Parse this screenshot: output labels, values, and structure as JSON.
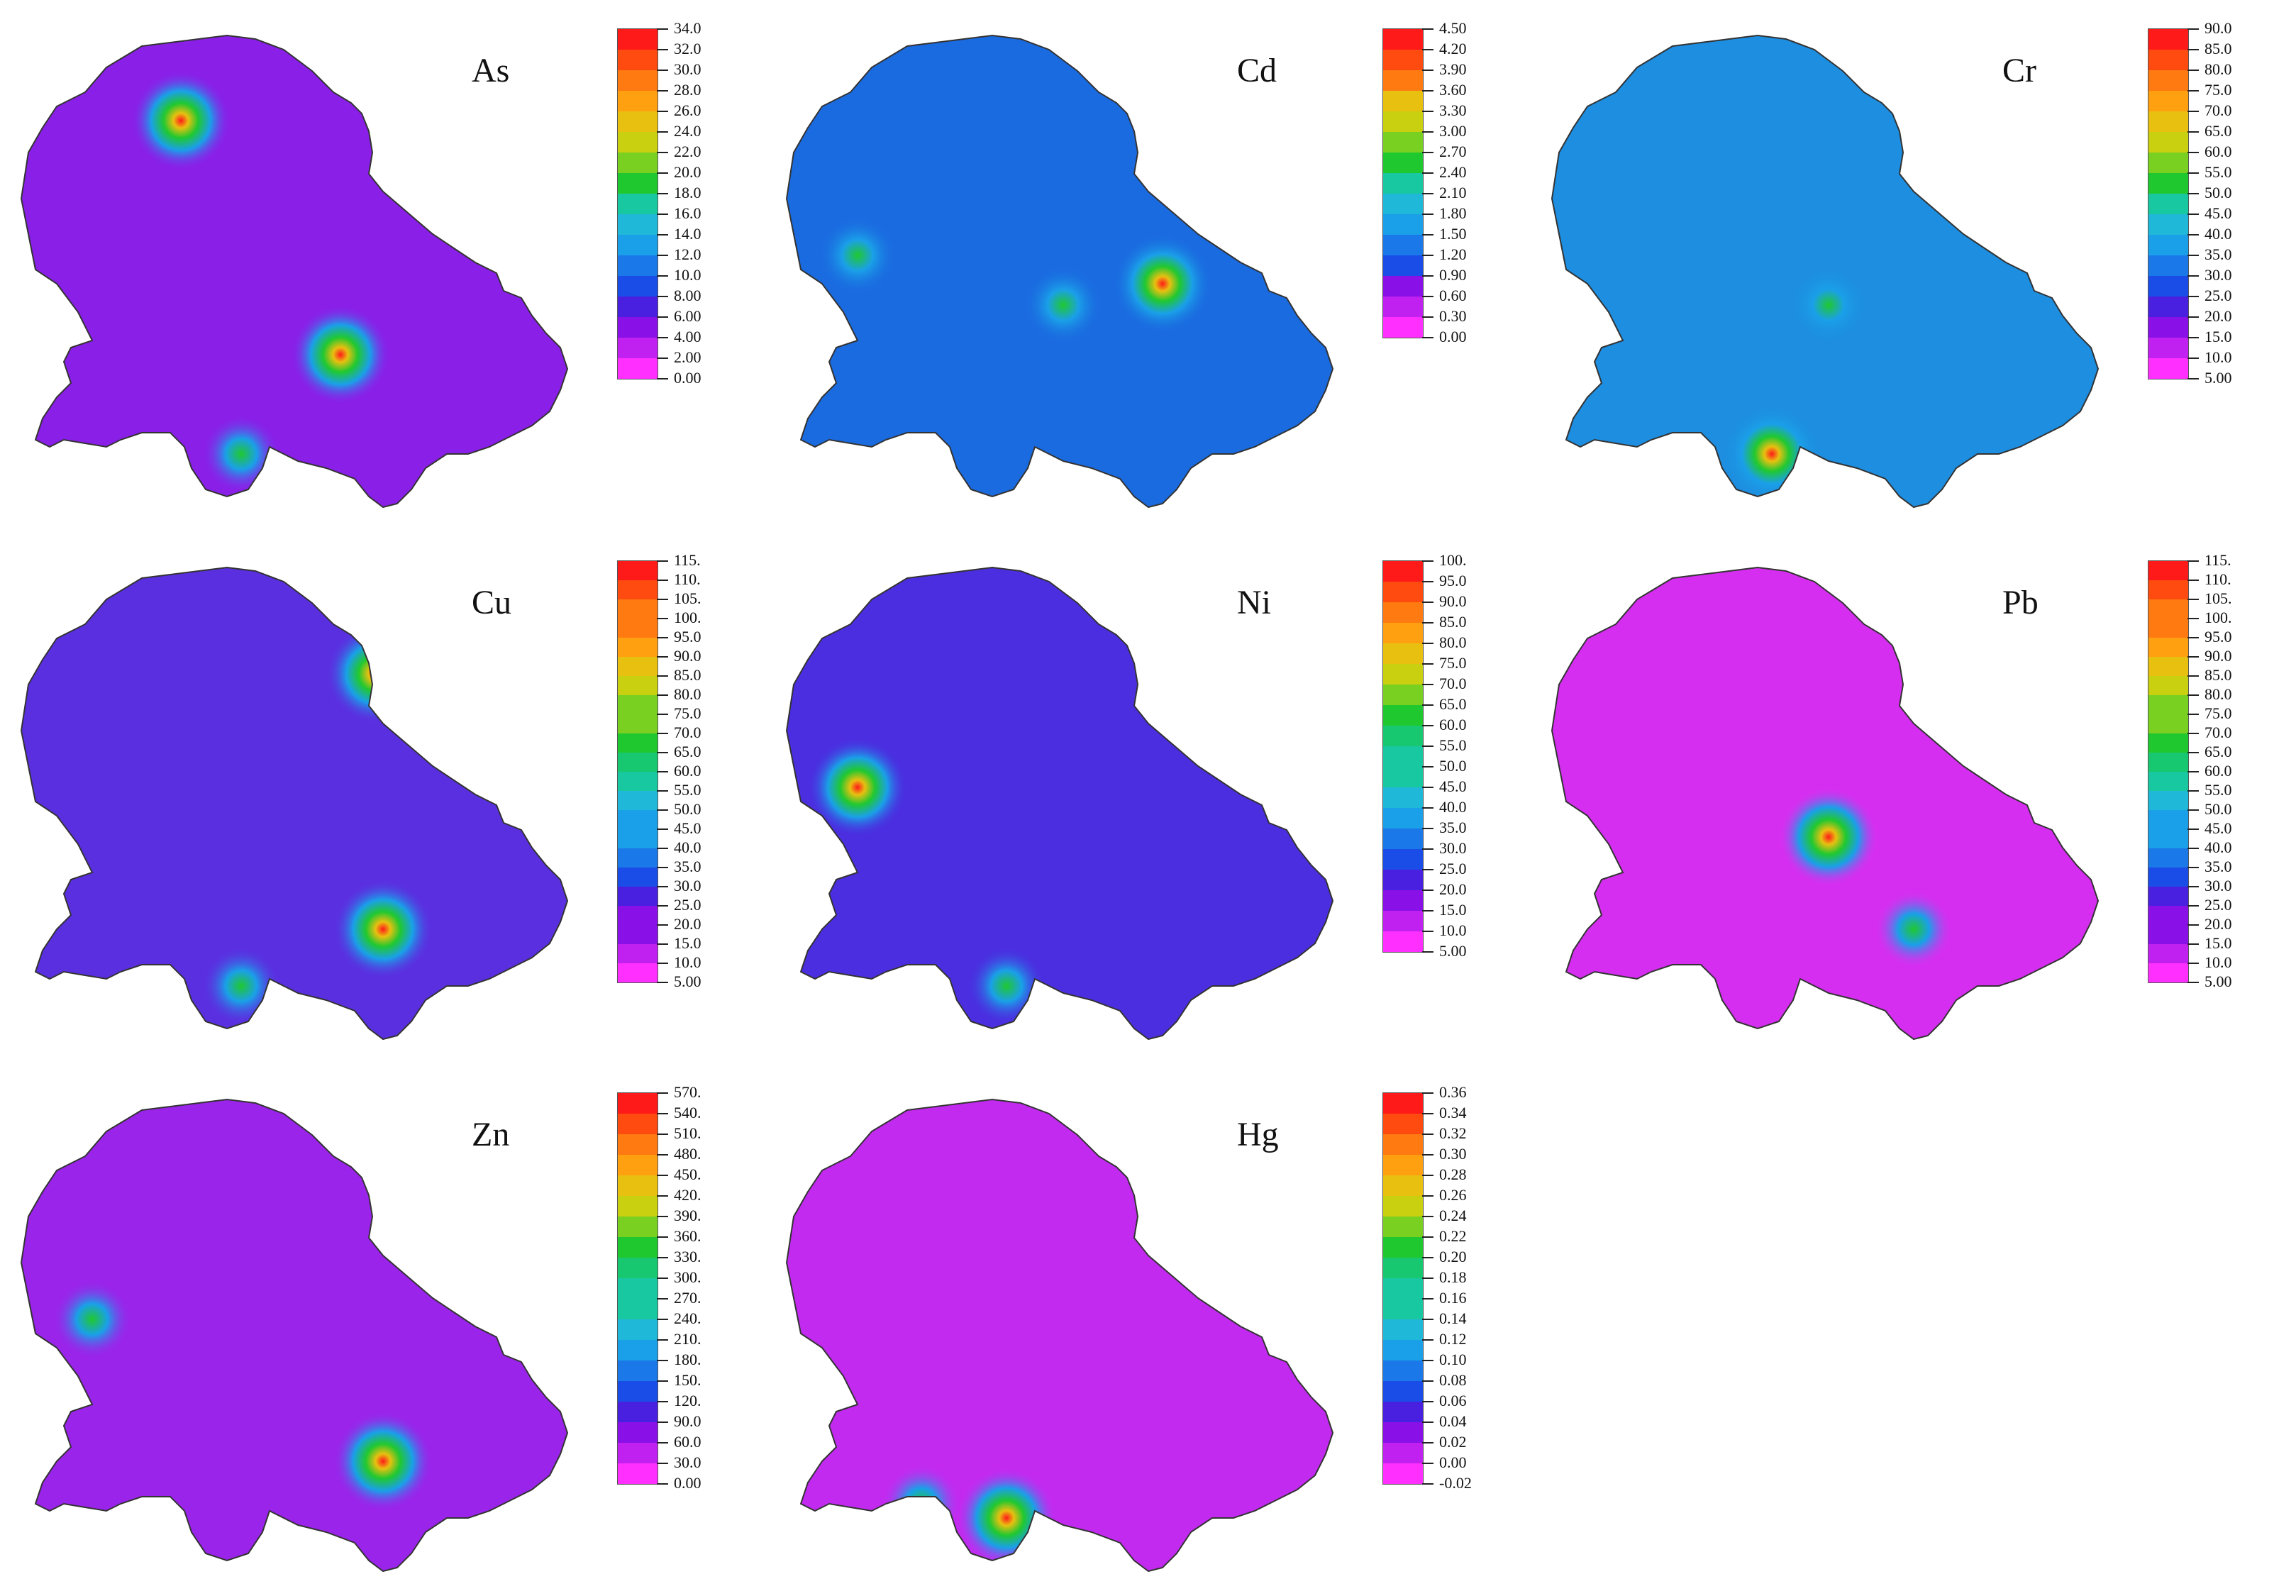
{
  "panels": [
    {
      "element": "As",
      "labels": [
        "34.0",
        "32.0",
        "30.0",
        "28.0",
        "26.0",
        "24.0",
        "22.0",
        "20.0",
        "18.0",
        "16.0",
        "14.0",
        "12.0",
        "10.0",
        "8.00",
        "6.00",
        "4.00",
        "2.00",
        "0.00"
      ],
      "base": "#8a1fe8",
      "hotspots": [
        {
          "where": "north",
          "level": "high"
        },
        {
          "where": "east-center",
          "level": "high"
        },
        {
          "where": "south",
          "level": "medium"
        }
      ]
    },
    {
      "element": "Cd",
      "labels": [
        "4.50",
        "4.20",
        "3.90",
        "3.60",
        "3.30",
        "3.00",
        "2.70",
        "2.40",
        "2.10",
        "1.80",
        "1.50",
        "1.20",
        "0.90",
        "0.60",
        "0.30",
        "0.00"
      ],
      "base": "#1a6be0",
      "hotspots": [
        {
          "where": "center-east",
          "level": "high"
        },
        {
          "where": "center",
          "level": "medium"
        },
        {
          "where": "west",
          "level": "medium"
        }
      ]
    },
    {
      "element": "Cr",
      "labels": [
        "90.0",
        "85.0",
        "80.0",
        "75.0",
        "70.0",
        "65.0",
        "60.0",
        "55.0",
        "50.0",
        "45.0",
        "40.0",
        "35.0",
        "30.0",
        "25.0",
        "20.0",
        "15.0",
        "10.0",
        "5.00"
      ],
      "base": "#1d8ee0",
      "hotspots": [
        {
          "where": "south",
          "level": "high"
        },
        {
          "where": "center",
          "level": "medium"
        }
      ]
    },
    {
      "element": "Cu",
      "labels": [
        "115.",
        "110.",
        "105.",
        "100.",
        "95.0",
        "90.0",
        "85.0",
        "80.0",
        "75.0",
        "70.0",
        "65.0",
        "60.0",
        "55.0",
        "50.0",
        "45.0",
        "40.0",
        "35.0",
        "30.0",
        "25.0",
        "20.0",
        "15.0",
        "10.0",
        "5.00"
      ],
      "base": "#5a2fe0",
      "hotspots": [
        {
          "where": "south-east",
          "level": "high"
        },
        {
          "where": "north-east",
          "level": "high"
        },
        {
          "where": "south",
          "level": "medium"
        }
      ]
    },
    {
      "element": "Ni",
      "labels": [
        "100.",
        "95.0",
        "90.0",
        "85.0",
        "80.0",
        "75.0",
        "70.0",
        "65.0",
        "60.0",
        "55.0",
        "50.0",
        "45.0",
        "40.0",
        "35.0",
        "30.0",
        "25.0",
        "20.0",
        "15.0",
        "10.0",
        "5.00"
      ],
      "base": "#4a2ee0",
      "hotspots": [
        {
          "where": "west",
          "level": "high"
        },
        {
          "where": "south",
          "level": "medium"
        }
      ]
    },
    {
      "element": "Pb",
      "labels": [
        "115.",
        "110.",
        "105.",
        "100.",
        "95.0",
        "90.0",
        "85.0",
        "80.0",
        "75.0",
        "70.0",
        "65.0",
        "60.0",
        "55.0",
        "50.0",
        "45.0",
        "40.0",
        "35.0",
        "30.0",
        "25.0",
        "20.0",
        "15.0",
        "10.0",
        "5.00"
      ],
      "base": "#d62ef0",
      "hotspots": [
        {
          "where": "center",
          "level": "high"
        },
        {
          "where": "south-east",
          "level": "medium"
        }
      ]
    },
    {
      "element": "Zn",
      "labels": [
        "570.",
        "540.",
        "510.",
        "480.",
        "450.",
        "420.",
        "390.",
        "360.",
        "330.",
        "300.",
        "270.",
        "240.",
        "210.",
        "180.",
        "150.",
        "120.",
        "90.0",
        "60.0",
        "30.0",
        "0.00"
      ],
      "base": "#9a24ea",
      "hotspots": [
        {
          "where": "south-east",
          "level": "high"
        },
        {
          "where": "west",
          "level": "medium"
        }
      ]
    },
    {
      "element": "Hg",
      "labels": [
        "0.36",
        "0.34",
        "0.32",
        "0.30",
        "0.28",
        "0.26",
        "0.24",
        "0.22",
        "0.20",
        "0.18",
        "0.16",
        "0.14",
        "0.12",
        "0.10",
        "0.08",
        "0.06",
        "0.04",
        "0.02",
        "0.00",
        "-0.02"
      ],
      "base": "#c22af0",
      "hotspots": [
        {
          "where": "south",
          "level": "high"
        },
        {
          "where": "south-west",
          "level": "medium"
        }
      ]
    }
  ],
  "colors": {
    "ramp": [
      "#ff1a1a",
      "#ff4a10",
      "#ff7a10",
      "#ffa010",
      "#e8c010",
      "#c8d010",
      "#7ad020",
      "#20c830",
      "#18c870",
      "#18c8a0",
      "#20b8d8",
      "#1aa0e8",
      "#1a78e8",
      "#1a4de8",
      "#4a20e0",
      "#8a10e8",
      "#c020f0",
      "#ff30ff"
    ]
  }
}
